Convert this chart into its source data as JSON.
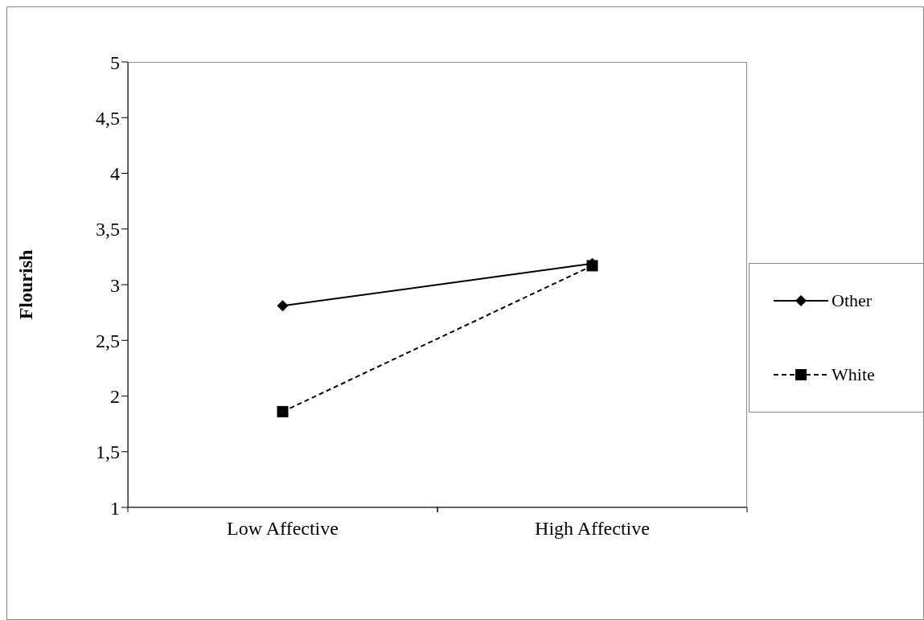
{
  "chart_data": {
    "type": "line",
    "ylabel": "Flourish",
    "categories": [
      "Low Affective",
      "High Affective"
    ],
    "series": [
      {
        "name": "Other",
        "color": "#000000",
        "values": [
          2.81,
          3.19
        ],
        "marker": "diamond",
        "line_style": "solid"
      },
      {
        "name": "White",
        "color": "#000000",
        "values": [
          1.86,
          3.17
        ],
        "marker": "square",
        "line_style": "dashed"
      }
    ],
    "ylim": [
      1,
      5
    ],
    "yticks": [
      1,
      {
        "value": 1.5,
        "label": "1,5"
      },
      2,
      {
        "value": 2.5,
        "label": "2,5"
      },
      3,
      {
        "value": 3.5,
        "label": "3,5"
      },
      4,
      {
        "value": 4.5,
        "label": "4,5"
      },
      5
    ],
    "legend": "right"
  }
}
